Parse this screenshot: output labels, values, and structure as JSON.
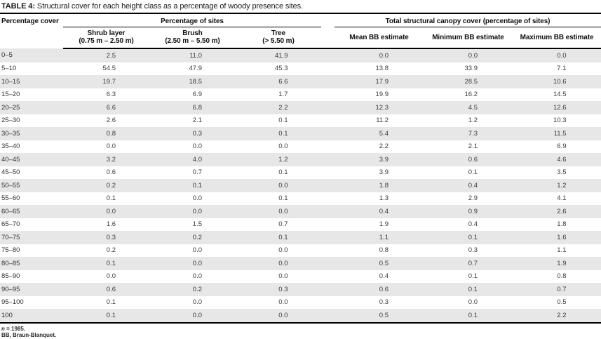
{
  "page": {
    "title_label": "TABLE 4:",
    "title_text": " Structural cover for each height class as a percentage of woody presence sites."
  },
  "table": {
    "columns": {
      "col1": "Percentage cover",
      "group1": "Percentage of sites",
      "group2": "Total structural canopy cover (percentage of sites)",
      "sub1_line1": "Shrub layer",
      "sub1_line2": "(0.75 m – 2.50 m)",
      "sub2_line1": "Brush",
      "sub2_line2": "(2.50 m – 5.50 m)",
      "sub3_line1": "Tree",
      "sub3_line2": "(> 5.50 m)",
      "sub4": "Mean BB estimate",
      "sub5": "Minimum BB estimate",
      "sub6": "Maximum BB estimate"
    },
    "rows": [
      {
        "cover": "0–5",
        "values": [
          "2.5",
          "11.0",
          "41.9",
          "0.0",
          "0.0",
          "0.0"
        ]
      },
      {
        "cover": "5–10",
        "values": [
          "54.5",
          "47.9",
          "45.3",
          "13.8",
          "33.9",
          "7.1"
        ]
      },
      {
        "cover": "10–15",
        "values": [
          "19.7",
          "18.5",
          "6.6",
          "17.9",
          "28.5",
          "10.6"
        ]
      },
      {
        "cover": "15–20",
        "values": [
          "6.3",
          "6.9",
          "1.7",
          "19.9",
          "16.2",
          "14.5"
        ]
      },
      {
        "cover": "20–25",
        "values": [
          "6.6",
          "6.8",
          "2.2",
          "12.3",
          "4.5",
          "12.6"
        ]
      },
      {
        "cover": "25–30",
        "values": [
          "2.6",
          "2.1",
          "0.1",
          "11.2",
          "1.2",
          "10.3"
        ]
      },
      {
        "cover": "30–35",
        "values": [
          "0.8",
          "0.3",
          "0.1",
          "5.4",
          "7.3",
          "11.5"
        ]
      },
      {
        "cover": "35–40",
        "values": [
          "0.0",
          "0.0",
          "0.0",
          "2.2",
          "2.1",
          "6.9"
        ]
      },
      {
        "cover": "40–45",
        "values": [
          "3.2",
          "4.0",
          "1.2",
          "3.9",
          "0.6",
          "4.6"
        ]
      },
      {
        "cover": "45–50",
        "values": [
          "0.6",
          "0.7",
          "0.1",
          "3.9",
          "0.1",
          "3.5"
        ]
      },
      {
        "cover": "50–55",
        "values": [
          "0.2",
          "0.1",
          "0.0",
          "1.8",
          "0.4",
          "1.2"
        ]
      },
      {
        "cover": "55–60",
        "values": [
          "0.1",
          "0.0",
          "0.1",
          "1.3",
          "2.9",
          "4.1"
        ]
      },
      {
        "cover": "60–65",
        "values": [
          "0.0",
          "0.0",
          "0.0",
          "0.4",
          "0.9",
          "2.6"
        ]
      },
      {
        "cover": "65–70",
        "values": [
          "1.6",
          "1.5",
          "0.7",
          "1.9",
          "0.4",
          "1.8"
        ]
      },
      {
        "cover": "70–75",
        "values": [
          "0.3",
          "0.2",
          "0.1",
          "1.1",
          "0.1",
          "1.6"
        ]
      },
      {
        "cover": "75–80",
        "values": [
          "0.2",
          "0.0",
          "0.0",
          "0.8",
          "0.3",
          "1.1"
        ]
      },
      {
        "cover": "80–85",
        "values": [
          "0.1",
          "0.0",
          "0.0",
          "0.5",
          "0.7",
          "1.9"
        ]
      },
      {
        "cover": "85–90",
        "values": [
          "0.0",
          "0.0",
          "0.0",
          "0.4",
          "0.1",
          "0.8"
        ]
      },
      {
        "cover": "90–95",
        "values": [
          "0.6",
          "0.2",
          "0.3",
          "0.6",
          "0.1",
          "0.7"
        ]
      },
      {
        "cover": "95–100",
        "values": [
          "0.1",
          "0.0",
          "0.0",
          "0.3",
          "0.0",
          "0.5"
        ]
      },
      {
        "cover": "100",
        "values": [
          "0.1",
          "0.0",
          "0.0",
          "0.5",
          "0.1",
          "2.2"
        ]
      }
    ],
    "footnote1_symbol": "n",
    "footnote1_rest": " = 1985.",
    "footnote2": "BB, Braun-Blanquet."
  },
  "colors": {
    "row_shade": "#e7e7e7",
    "rule": "#000000",
    "text": "#231f20"
  }
}
